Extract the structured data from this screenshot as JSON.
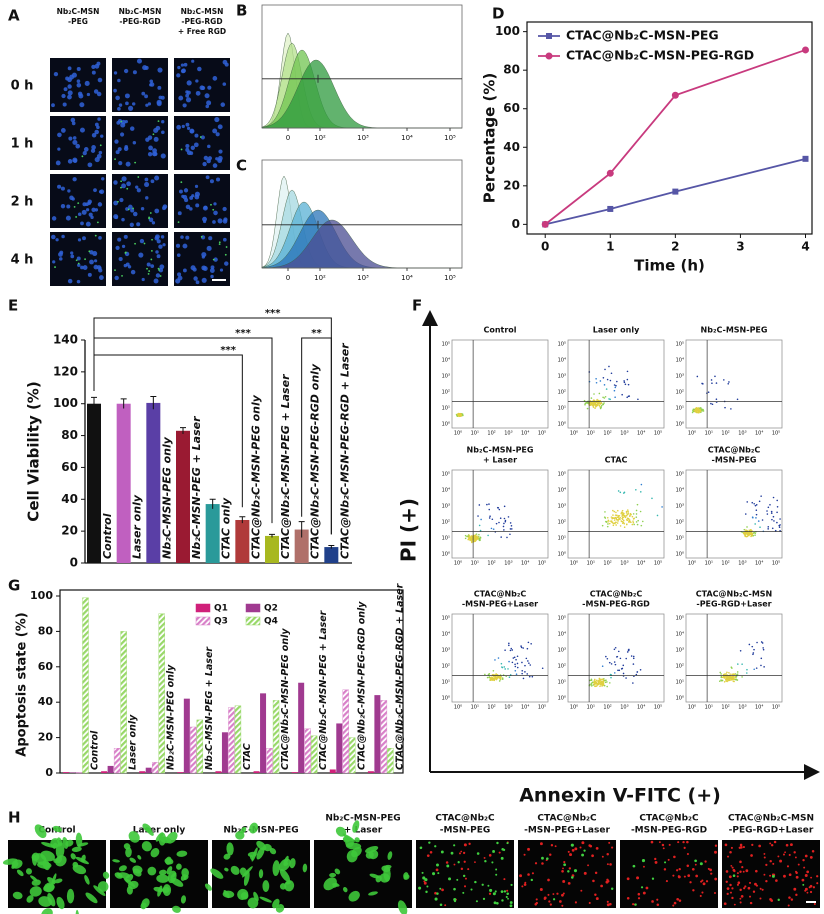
{
  "panels": {
    "A": {
      "label": "A",
      "columns": [
        [
          "Nb₂C-MSN",
          "-PEG"
        ],
        [
          "Nb₂C-MSN",
          "-PEG-RGD"
        ],
        [
          "Nb₂C-MSN",
          "-PEG-RGD",
          "+ Free RGD"
        ]
      ],
      "rows": [
        "0 h",
        "1 h",
        "2 h",
        "4 h"
      ]
    },
    "B": {
      "label": "B",
      "xticks": [
        "0",
        "10²",
        "10³",
        "10⁴",
        "10⁵"
      ]
    },
    "C": {
      "label": "C",
      "xticks": [
        "0",
        "10²",
        "10³",
        "10⁴",
        "10⁵"
      ]
    },
    "F": {
      "label": "F",
      "ylabel": "PI (+)",
      "xlabel": "Annexin V-FITC (+)",
      "ticks": [
        "10⁰",
        "10¹",
        "10²",
        "10³",
        "10⁴",
        "10⁵"
      ],
      "plots": [
        [
          "Control"
        ],
        [
          "Laser only"
        ],
        [
          "Nb₂C-MSN-PEG"
        ],
        [
          "Nb₂C-MSN-PEG",
          "+ Laser"
        ],
        [
          "CTAC"
        ],
        [
          "CTAC@Nb₂C",
          "-MSN-PEG"
        ],
        [
          "CTAC@Nb₂C",
          "-MSN-PEG+Laser"
        ],
        [
          "CTAC@Nb₂C",
          "-MSN-PEG-RGD"
        ],
        [
          "CTAC@Nb₂C-MSN",
          "-PEG-RGD+Laser"
        ]
      ]
    },
    "H": {
      "label": "H",
      "images": [
        [
          "Control"
        ],
        [
          "Laser only"
        ],
        [
          "Nb₂C-MSN-PEG"
        ],
        [
          "Nb₂C-MSN-PEG",
          "+ Laser"
        ],
        [
          "CTAC@Nb₂C",
          "-MSN-PEG"
        ],
        [
          "CTAC@Nb₂C",
          "-MSN-PEG+Laser"
        ],
        [
          "CTAC@Nb₂C",
          "-MSN-PEG-RGD"
        ],
        [
          "CTAC@Nb₂C-MSN",
          "-PEG-RGD+Laser"
        ]
      ]
    }
  },
  "chart_data": [
    {
      "type": "line",
      "panel": "D",
      "xlabel": "Time (h)",
      "ylabel": "Percentage (%)",
      "x": [
        0,
        1,
        2,
        4
      ],
      "xlim": [
        -0.28,
        4.1
      ],
      "xticks": [
        0,
        1,
        2,
        3,
        4
      ],
      "ylim": [
        -5,
        105
      ],
      "yticks": [
        0,
        20,
        40,
        60,
        80,
        100
      ],
      "series": [
        {
          "name": "CTAC@Nb₂C-MSN-PEG",
          "color": "#5656a6",
          "marker": "square",
          "values": [
            0,
            8,
            17,
            34
          ]
        },
        {
          "name": "CTAC@Nb₂C-MSN-PEG-RGD",
          "color": "#c83a7e",
          "marker": "circle",
          "values": [
            0,
            26.5,
            67,
            90.5
          ]
        }
      ]
    },
    {
      "type": "bar",
      "panel": "E",
      "ylabel": "Cell Viability (%)",
      "categories": [
        "Control",
        "Laser only",
        "Nb₂C-MSN-PEG only",
        "Nb₂C-MSN-PEG + Laser",
        "CTAC only",
        "CTAC@Nb₂C-MSN-PEG only",
        "CTAC@Nb₂C-MSN-PEG + Laser",
        "CTAC@Nb₂C-MSN-PEG-RGD only",
        "CTAC@Nb₂C-MSN-PEG-RGD + Laser"
      ],
      "values": [
        100,
        100,
        100.5,
        83,
        37,
        27,
        17,
        21,
        10
      ],
      "errors": [
        4,
        3,
        4,
        2,
        3,
        2,
        1,
        5,
        1
      ],
      "colors": [
        "#111111",
        "#c060c0",
        "#5a3fa6",
        "#9a1a32",
        "#2a9a9a",
        "#b03a3a",
        "#a8b820",
        "#b0706a",
        "#20408a"
      ],
      "ylim": [
        0,
        140
      ],
      "yticks": [
        0,
        20,
        40,
        60,
        80,
        100,
        120,
        140
      ],
      "annotations": [
        "***",
        "***",
        "***",
        "**"
      ]
    },
    {
      "type": "grouped-bar",
      "panel": "G",
      "ylabel": "Apoptosis state (%)",
      "categories": [
        "Control",
        "Laser only",
        "Nb₂C-MSN-PEG only",
        "Nb₂C-MSN-PEG + Laser",
        "CTAC",
        "CTAC@Nb₂C-MSN-PEG only",
        "CTAC@Nb₂C-MSN-PEG + Laser",
        "CTAC@Nb₂C-MSN-PEG-RGD only",
        "CTAC@Nb₂C-MSN-PEG-RGD + Laser"
      ],
      "ylim": [
        0,
        100
      ],
      "yticks": [
        0,
        20,
        40,
        60,
        80,
        100
      ],
      "series": [
        {
          "name": "Q1",
          "color": "#d0207a",
          "hatch": false,
          "values": [
            0.5,
            1,
            1,
            0.5,
            1,
            1,
            0.5,
            2,
            1
          ]
        },
        {
          "name": "Q2",
          "color": "#a03a90",
          "hatch": false,
          "values": [
            0.3,
            4,
            3,
            42,
            23,
            45,
            51,
            28,
            44
          ]
        },
        {
          "name": "Q3",
          "color": "#d880c8",
          "hatch": true,
          "values": [
            0.3,
            14,
            6,
            26,
            37,
            14,
            25,
            47,
            41
          ]
        },
        {
          "name": "Q4",
          "color": "#98d868",
          "hatch": true,
          "values": [
            99,
            80,
            90,
            30,
            38,
            41,
            21,
            20,
            14
          ]
        }
      ]
    }
  ]
}
